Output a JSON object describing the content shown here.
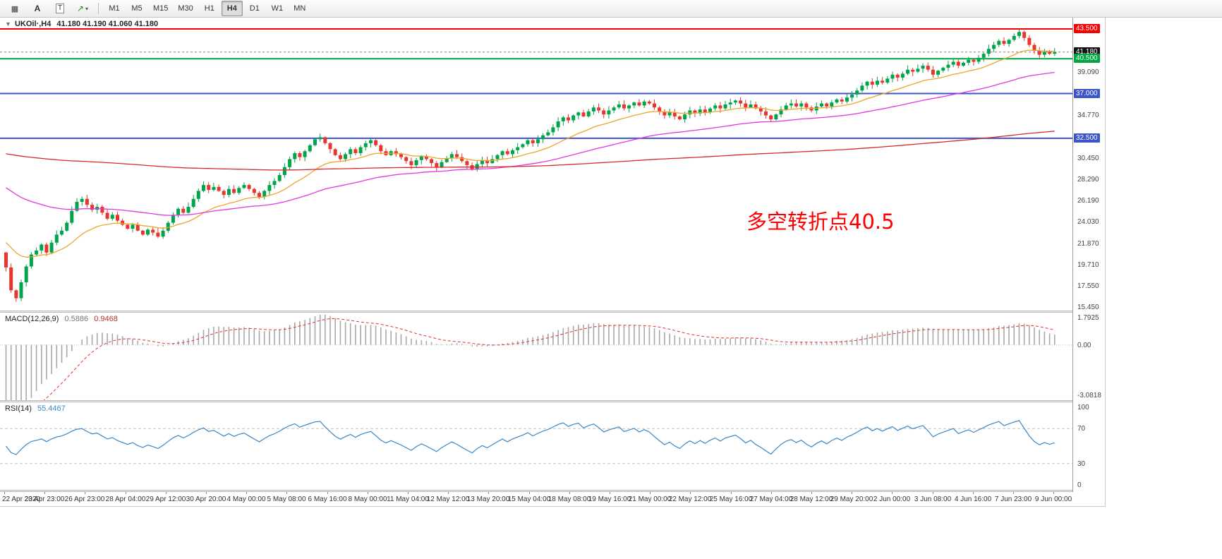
{
  "toolbar": {
    "tools": [
      {
        "name": "chart-type-icon",
        "glyph": "▦"
      },
      {
        "name": "text-label-tool",
        "glyph": "A"
      },
      {
        "name": "text-tool",
        "glyph": "T"
      },
      {
        "name": "shapes-tool",
        "glyph": "↗"
      },
      {
        "name": "shapes-dropdown",
        "glyph": "▾"
      }
    ],
    "timeframes": [
      "M1",
      "M5",
      "M15",
      "M30",
      "H1",
      "H4",
      "D1",
      "W1",
      "MN"
    ],
    "active_timeframe": "H4"
  },
  "chart": {
    "header": {
      "collapse_glyph": "▼",
      "symbol": "UKOil·,H4",
      "ohlc": "41.180 41.190 41.060 41.180"
    },
    "annotation": {
      "text": "多空转折点40.5",
      "color": "#ff0000"
    },
    "levels": [
      {
        "price": 43.5,
        "label": "43.500",
        "line": "#f60000",
        "lw": 2,
        "style": "solid",
        "badge_bg": "#f60000"
      },
      {
        "price": 41.18,
        "label": "41.180",
        "line": "#808080",
        "lw": 1,
        "style": "dashed",
        "badge_bg": "#111111"
      },
      {
        "price": 40.5,
        "label": "40.500",
        "line": "#00a63f",
        "lw": 2,
        "style": "solid",
        "badge_bg": "#00a63f"
      },
      {
        "price": 37.0,
        "label": "37.000",
        "line": "#3c55cb",
        "lw": 2,
        "style": "solid",
        "badge_bg": "#3c55cb"
      },
      {
        "price": 32.5,
        "label": "32.500",
        "line": "#3c55cb",
        "lw": 2,
        "style": "solid",
        "badge_bg": "#3c55cb"
      }
    ],
    "axis_ticks": [
      {
        "v": 39.09,
        "t": "39.090"
      },
      {
        "v": 34.77,
        "t": "34.770"
      },
      {
        "v": 30.45,
        "t": "30.450"
      },
      {
        "v": 28.29,
        "t": "28.290"
      },
      {
        "v": 26.19,
        "t": "26.190"
      },
      {
        "v": 24.03,
        "t": "24.030"
      },
      {
        "v": 21.87,
        "t": "21.870"
      },
      {
        "v": 19.71,
        "t": "19.710"
      },
      {
        "v": 17.55,
        "t": "17.550"
      },
      {
        "v": 15.45,
        "t": "15.450"
      }
    ]
  },
  "chart_data": {
    "type": "candlestick",
    "symbol": "UKOil",
    "timeframe": "H4",
    "ylim": [
      15.16,
      44.64
    ],
    "open_first": 21.0,
    "up_color": "#00a44a",
    "down_color": "#e8352e",
    "closes": [
      19.5,
      17.2,
      16.4,
      18.0,
      19.6,
      20.8,
      21.2,
      21.8,
      21.0,
      22.0,
      22.8,
      23.2,
      24.0,
      25.2,
      26.1,
      26.4,
      25.8,
      25.3,
      25.6,
      25.0,
      24.4,
      24.8,
      24.2,
      23.8,
      23.4,
      23.8,
      23.2,
      22.8,
      23.3,
      23.0,
      22.6,
      23.2,
      24.0,
      24.8,
      25.4,
      25.0,
      25.6,
      26.4,
      27.2,
      27.8,
      27.3,
      27.6,
      27.2,
      26.8,
      27.4,
      27.0,
      27.5,
      27.8,
      27.4,
      27.0,
      26.6,
      27.2,
      27.8,
      28.2,
      28.8,
      29.6,
      30.4,
      31.0,
      30.6,
      31.2,
      31.8,
      32.4,
      32.6,
      32.0,
      31.4,
      30.8,
      30.4,
      30.9,
      31.4,
      31.0,
      31.6,
      32.0,
      32.3,
      31.8,
      31.2,
      30.8,
      31.2,
      30.9,
      30.6,
      30.2,
      29.8,
      30.3,
      30.7,
      30.4,
      30.0,
      29.6,
      30.1,
      30.5,
      30.9,
      30.6,
      30.2,
      29.8,
      29.4,
      29.9,
      30.3,
      30.0,
      30.4,
      30.8,
      31.2,
      30.9,
      31.3,
      31.6,
      31.9,
      32.3,
      32.0,
      32.4,
      32.8,
      33.1,
      33.6,
      34.2,
      34.6,
      34.3,
      34.8,
      35.1,
      34.7,
      35.2,
      35.6,
      35.3,
      34.9,
      35.3,
      35.6,
      35.9,
      35.5,
      35.8,
      36.1,
      35.8,
      36.2,
      36.0,
      35.6,
      35.2,
      34.8,
      35.1,
      34.7,
      34.4,
      34.9,
      35.3,
      35.0,
      35.4,
      35.1,
      35.5,
      35.8,
      35.5,
      35.9,
      36.1,
      36.3,
      36.0,
      35.6,
      35.9,
      35.5,
      35.2,
      34.8,
      34.4,
      34.9,
      35.4,
      35.8,
      36.0,
      35.7,
      36.0,
      35.6,
      35.3,
      35.7,
      36.0,
      35.7,
      36.1,
      36.4,
      36.2,
      36.6,
      36.9,
      37.3,
      37.8,
      38.2,
      37.9,
      38.3,
      38.1,
      38.5,
      38.9,
      38.6,
      39.0,
      39.4,
      39.2,
      39.5,
      39.8,
      39.4,
      38.9,
      39.3,
      39.6,
      39.9,
      40.2,
      39.8,
      40.1,
      40.4,
      40.2,
      40.6,
      41.0,
      41.5,
      41.9,
      42.3,
      42.0,
      42.4,
      42.8,
      43.2,
      42.6,
      41.9,
      41.3,
      40.9,
      41.2,
      41.0,
      41.18
    ],
    "ma": [
      {
        "name": "ma-fast",
        "period": 18,
        "init": 22.3,
        "color": "#efa42a"
      },
      {
        "name": "ma-medium",
        "period": 60,
        "init": 27.8,
        "color": "#e236e2"
      },
      {
        "name": "ma-slow",
        "period": 350,
        "init": 31.0,
        "color": "#d62b2b"
      }
    ],
    "macd": {
      "label": "MACD(12,26,9)",
      "value_main": "0.5886",
      "value_signal": "0.9468",
      "fast": 12,
      "slow": 26,
      "signal": 9,
      "init_fast": 19.5,
      "init_slow": 24.0,
      "range": [
        -3.0818,
        1.7925
      ],
      "axis_labels": [
        {
          "v": 1.7925,
          "t": "1.7925"
        },
        {
          "v": 0,
          "t": "0.00"
        },
        {
          "v": -3.0818,
          "t": "-3.0818"
        }
      ],
      "hist_color": "#a8a8a8",
      "signal_color": "#e03030"
    },
    "rsi": {
      "label": "RSI(14)",
      "value": "55.4467",
      "period": 14,
      "range": [
        0,
        100
      ],
      "levels": [
        70,
        30
      ],
      "axis_labels": [
        {
          "v": 100,
          "t": "100"
        },
        {
          "v": 70,
          "t": "70"
        },
        {
          "v": 30,
          "t": "30"
        },
        {
          "v": 0,
          "t": "0"
        }
      ],
      "color": "#3a87c8"
    },
    "x_labels": [
      "22 Apr 2020",
      "23 Apr 23:00",
      "26 Apr 23:00",
      "28 Apr 04:00",
      "29 Apr 12:00",
      "30 Apr 20:00",
      "4 May 00:00",
      "5 May 08:00",
      "6 May 16:00",
      "8 May 00:00",
      "11 May 04:00",
      "12 May 12:00",
      "13 May 20:00",
      "15 May 04:00",
      "18 May 08:00",
      "19 May 16:00",
      "21 May 00:00",
      "22 May 12:00",
      "25 May 16:00",
      "27 May 04:00",
      "28 May 12:00",
      "29 May 20:00",
      "2 Jun 00:00",
      "3 Jun 08:00",
      "4 Jun 16:00",
      "7 Jun 23:00",
      "9 Jun 00:00"
    ]
  }
}
